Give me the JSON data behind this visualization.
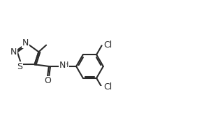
{
  "background_color": "#ffffff",
  "line_color": "#2a2a2a",
  "line_width": 1.5,
  "font_size": 8.5,
  "figsize": [
    2.82,
    1.66
  ],
  "dpi": 100,
  "xlim": [
    0,
    5.2
  ],
  "ylim": [
    -0.1,
    1.4
  ]
}
